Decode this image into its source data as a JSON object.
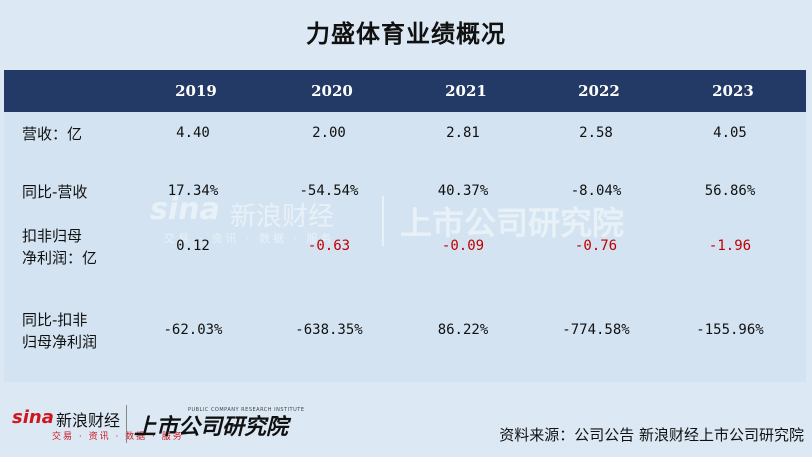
{
  "title": "力盛体育业绩概况",
  "header": {
    "years": [
      "2019",
      "2020",
      "2021",
      "2022",
      "2023"
    ]
  },
  "rows": [
    {
      "label_lines": [
        "营收：亿"
      ],
      "values": [
        "4.40",
        "2.00",
        "2.81",
        "2.58",
        "4.05"
      ],
      "red": [
        false,
        false,
        false,
        false,
        false
      ]
    },
    {
      "label_lines": [
        "同比-营收"
      ],
      "values": [
        "17.34%",
        "-54.54%",
        "40.37%",
        "-8.04%",
        "56.86%"
      ],
      "red": [
        false,
        false,
        false,
        false,
        false
      ]
    },
    {
      "label_lines": [
        "扣非归母",
        "净利润：亿"
      ],
      "values": [
        "0.12",
        "-0.63",
        "-0.09",
        "-0.76",
        "-1.96"
      ],
      "red": [
        false,
        true,
        true,
        true,
        true
      ]
    },
    {
      "label_lines": [
        "同比-扣非",
        "归母净利润"
      ],
      "values": [
        "-62.03%",
        "-638.35%",
        "86.22%",
        "-774.58%",
        "-155.96%"
      ],
      "red": [
        false,
        false,
        false,
        false,
        false
      ]
    }
  ],
  "watermark": {
    "sina": "sina",
    "sina_cn": "新浪财经",
    "sub": "交易 · 资讯 · 数据 · 服务",
    "right": "上市公司研究院"
  },
  "footer": {
    "logo_sina": "sina",
    "logo_cn": "新浪财经",
    "logo_sub": "交易 · 资讯 · 数据 · 服务",
    "logo_right": "上市公司研究院",
    "logo_tiny": "PUBLIC COMPANY RESEARCH INSTITUTE",
    "source": "资料来源：公司公告 新浪财经上市公司研究院"
  },
  "colors": {
    "header_bg": "#243a66",
    "negative": "#c00000",
    "page_bg": "#dce9f5"
  }
}
